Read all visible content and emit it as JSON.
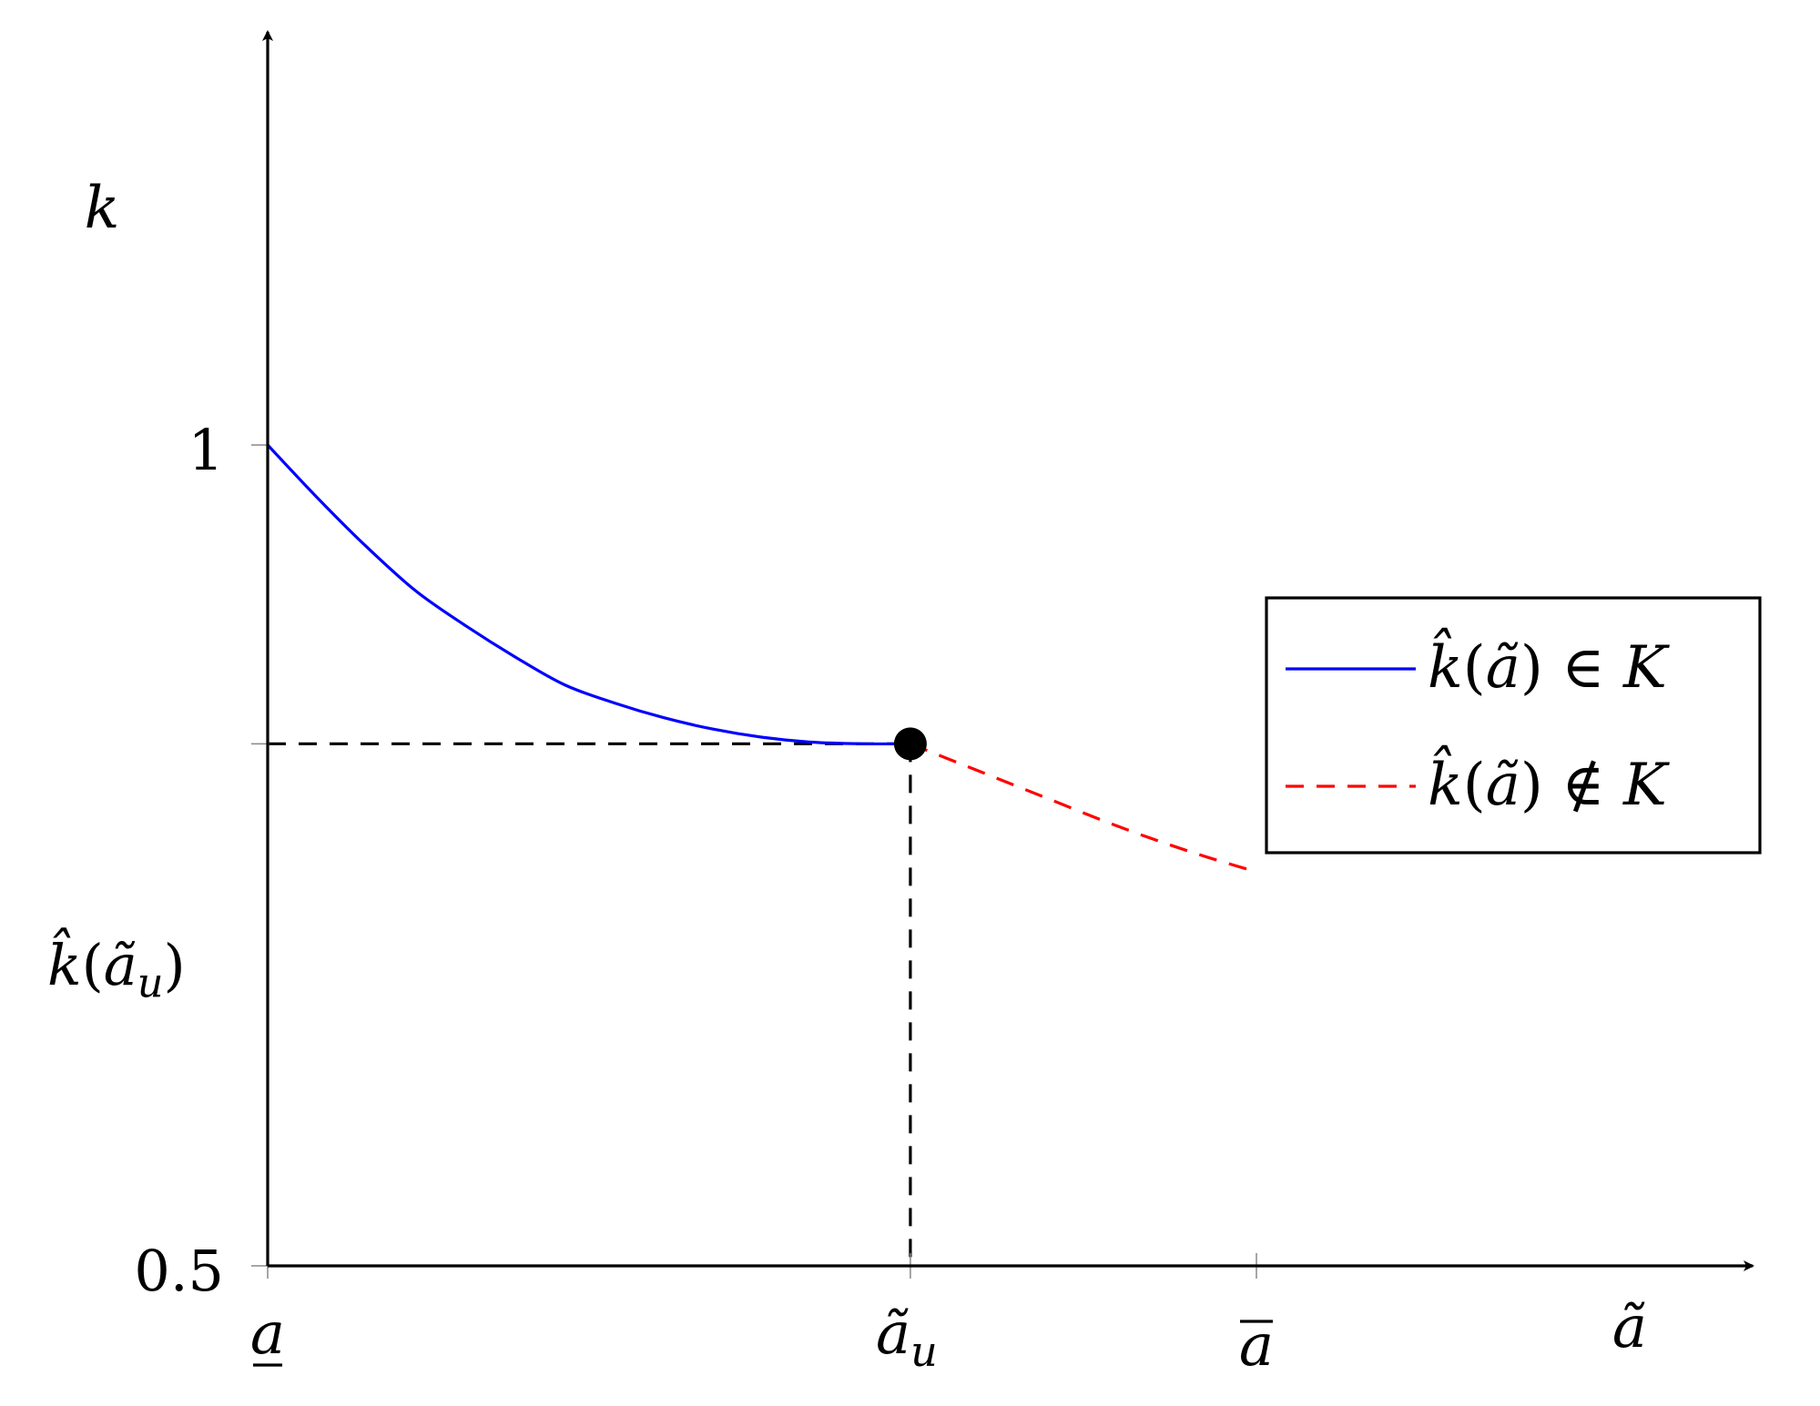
{
  "chart_data": {
    "type": "line",
    "title": "",
    "xlabel": "ã",
    "ylabel": "k",
    "xlim": [
      0,
      1.55
    ],
    "ylim": [
      0.5,
      1.5
    ],
    "x_ticks": [
      {
        "value": 0,
        "label": "a"
      },
      {
        "value": 0.65,
        "label": "ãu"
      },
      {
        "value": 1.0,
        "label": "a"
      }
    ],
    "y_ticks": [
      {
        "value": 0.5,
        "label": "0.5"
      },
      {
        "value": 0.818,
        "label": "k̂(ãu)"
      },
      {
        "value": 1.0,
        "label": "1"
      }
    ],
    "series": [
      {
        "name": "k̂(ã) ∈ K",
        "style": "solid",
        "color": "#0000ff",
        "x": [
          0,
          0.05,
          0.1,
          0.15,
          0.2,
          0.25,
          0.3,
          0.35,
          0.4,
          0.45,
          0.5,
          0.55,
          0.6,
          0.65
        ],
        "y": [
          1.0,
          0.968,
          0.938,
          0.911,
          0.89,
          0.871,
          0.854,
          0.843,
          0.834,
          0.827,
          0.822,
          0.819,
          0.818,
          0.818
        ]
      },
      {
        "name": "k̂(ã) ∉ K",
        "style": "dashed",
        "color": "#ff0000",
        "x": [
          0.65,
          0.7,
          0.75,
          0.8,
          0.85,
          0.9,
          0.95,
          1.0
        ],
        "y": [
          0.818,
          0.806,
          0.794,
          0.782,
          0.77,
          0.759,
          0.749,
          0.74
        ]
      }
    ],
    "marker": {
      "x": 0.65,
      "y": 0.818,
      "color": "#000000"
    },
    "guides": [
      {
        "type": "hline",
        "y": 0.818,
        "x_from": 0,
        "x_to": 0.65,
        "style": "dashed",
        "color": "#000000"
      },
      {
        "type": "vline",
        "x": 0.65,
        "y_from": 0.5,
        "y_to": 0.818,
        "style": "dashed",
        "color": "#000000"
      }
    ],
    "legend": {
      "placement": "right",
      "entries": [
        {
          "label": "k̂(ã) ∈ K",
          "style": "solid",
          "color": "#0000ff"
        },
        {
          "label": "k̂(ã) ∉ K",
          "style": "dashed",
          "color": "#ff0000"
        }
      ]
    }
  }
}
